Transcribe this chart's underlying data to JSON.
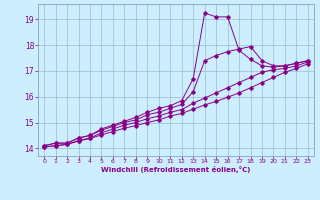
{
  "title": "",
  "xlabel": "Windchill (Refroidissement éolien,°C)",
  "ylabel": "",
  "bg_color": "#cceeff",
  "line_color": "#880088",
  "grid_color": "#99bbcc",
  "xlim": [
    -0.5,
    23.5
  ],
  "ylim": [
    13.7,
    19.6
  ],
  "xticks": [
    0,
    1,
    2,
    3,
    4,
    5,
    6,
    7,
    8,
    9,
    10,
    11,
    12,
    13,
    14,
    15,
    16,
    17,
    18,
    19,
    20,
    21,
    22,
    23
  ],
  "yticks": [
    14,
    15,
    16,
    17,
    18,
    19
  ],
  "series1": [
    [
      0,
      14.1
    ],
    [
      1,
      14.2
    ],
    [
      2,
      14.2
    ],
    [
      3,
      14.4
    ],
    [
      4,
      14.5
    ],
    [
      5,
      14.75
    ],
    [
      6,
      14.9
    ],
    [
      7,
      15.05
    ],
    [
      8,
      15.2
    ],
    [
      9,
      15.4
    ],
    [
      10,
      15.55
    ],
    [
      11,
      15.65
    ],
    [
      12,
      15.85
    ],
    [
      13,
      16.7
    ],
    [
      14,
      19.25
    ],
    [
      15,
      19.1
    ],
    [
      16,
      19.1
    ],
    [
      17,
      17.8
    ],
    [
      18,
      17.45
    ],
    [
      19,
      17.2
    ],
    [
      20,
      17.15
    ],
    [
      21,
      17.2
    ],
    [
      22,
      17.3
    ],
    [
      23,
      17.4
    ]
  ],
  "series2": [
    [
      0,
      14.1
    ],
    [
      1,
      14.2
    ],
    [
      2,
      14.2
    ],
    [
      3,
      14.4
    ],
    [
      4,
      14.5
    ],
    [
      5,
      14.7
    ],
    [
      6,
      14.85
    ],
    [
      7,
      15.0
    ],
    [
      8,
      15.1
    ],
    [
      9,
      15.3
    ],
    [
      10,
      15.4
    ],
    [
      11,
      15.55
    ],
    [
      12,
      15.7
    ],
    [
      13,
      16.2
    ],
    [
      14,
      17.4
    ],
    [
      15,
      17.6
    ],
    [
      16,
      17.75
    ],
    [
      17,
      17.85
    ],
    [
      18,
      17.95
    ],
    [
      19,
      17.4
    ],
    [
      20,
      17.2
    ],
    [
      21,
      17.2
    ],
    [
      22,
      17.3
    ],
    [
      23,
      17.4
    ]
  ],
  "series3": [
    [
      0,
      14.05
    ],
    [
      1,
      14.1
    ],
    [
      2,
      14.15
    ],
    [
      3,
      14.3
    ],
    [
      4,
      14.4
    ],
    [
      5,
      14.6
    ],
    [
      6,
      14.75
    ],
    [
      7,
      14.9
    ],
    [
      8,
      15.0
    ],
    [
      9,
      15.15
    ],
    [
      10,
      15.25
    ],
    [
      11,
      15.4
    ],
    [
      12,
      15.5
    ],
    [
      13,
      15.75
    ],
    [
      14,
      15.95
    ],
    [
      15,
      16.15
    ],
    [
      16,
      16.35
    ],
    [
      17,
      16.55
    ],
    [
      18,
      16.75
    ],
    [
      19,
      16.95
    ],
    [
      20,
      17.05
    ],
    [
      21,
      17.1
    ],
    [
      22,
      17.2
    ],
    [
      23,
      17.35
    ]
  ],
  "series4": [
    [
      0,
      14.05
    ],
    [
      1,
      14.1
    ],
    [
      2,
      14.15
    ],
    [
      3,
      14.28
    ],
    [
      4,
      14.38
    ],
    [
      5,
      14.52
    ],
    [
      6,
      14.65
    ],
    [
      7,
      14.78
    ],
    [
      8,
      14.88
    ],
    [
      9,
      15.0
    ],
    [
      10,
      15.1
    ],
    [
      11,
      15.25
    ],
    [
      12,
      15.35
    ],
    [
      13,
      15.52
    ],
    [
      14,
      15.68
    ],
    [
      15,
      15.82
    ],
    [
      16,
      15.98
    ],
    [
      17,
      16.15
    ],
    [
      18,
      16.35
    ],
    [
      19,
      16.55
    ],
    [
      20,
      16.75
    ],
    [
      21,
      16.95
    ],
    [
      22,
      17.1
    ],
    [
      23,
      17.28
    ]
  ]
}
